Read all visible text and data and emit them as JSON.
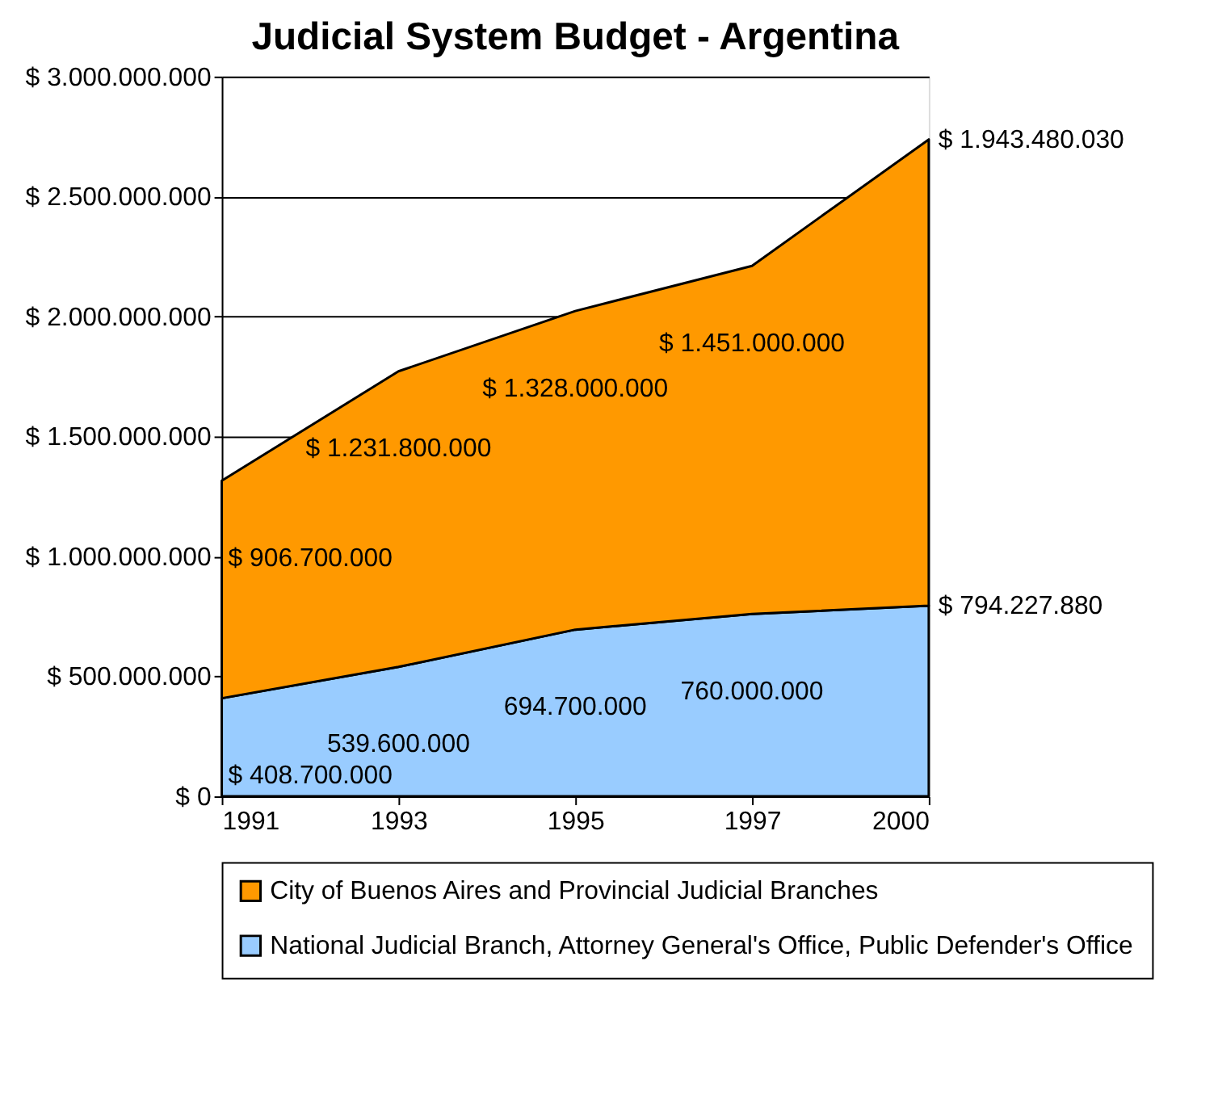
{
  "chart_data": {
    "type": "area",
    "title": "Judicial System Budget - Argentina",
    "stacked": true,
    "categories": [
      "1991",
      "1993",
      "1995",
      "1997",
      "2000"
    ],
    "series": [
      {
        "name": "National Judicial Branch, Attorney General's Office, Public Defender's Office",
        "color": "#99ccff",
        "values": [
          408700000,
          539600000,
          694700000,
          760000000,
          794227880
        ],
        "value_labels": [
          "$ 408.700.000",
          "539.600.000",
          "694.700.000",
          "760.000.000",
          "$ 794.227.880"
        ]
      },
      {
        "name": "City of Buenos Aires and Provincial Judicial Branches",
        "color": "#ff9900",
        "values": [
          906700000,
          1231800000,
          1328000000,
          1451000000,
          1943480030
        ],
        "value_labels": [
          "$ 906.700.000",
          "$ 1.231.800.000",
          "$ 1.328.000.000",
          "$ 1.451.000.000",
          "$ 1.943.480.030"
        ]
      }
    ],
    "ylim": [
      0,
      3000000000
    ],
    "yticks": [
      {
        "value": 0,
        "label": "$ 0"
      },
      {
        "value": 500000000,
        "label": "$ 500.000.000"
      },
      {
        "value": 1000000000,
        "label": "$ 1.000.000.000"
      },
      {
        "value": 1500000000,
        "label": "$ 1.500.000.000"
      },
      {
        "value": 2000000000,
        "label": "$ 2.000.000.000"
      },
      {
        "value": 2500000000,
        "label": "$ 2.500.000.000"
      },
      {
        "value": 3000000000,
        "label": "$ 3.000.000.000"
      }
    ],
    "grid": "y",
    "legend": "bottom"
  }
}
